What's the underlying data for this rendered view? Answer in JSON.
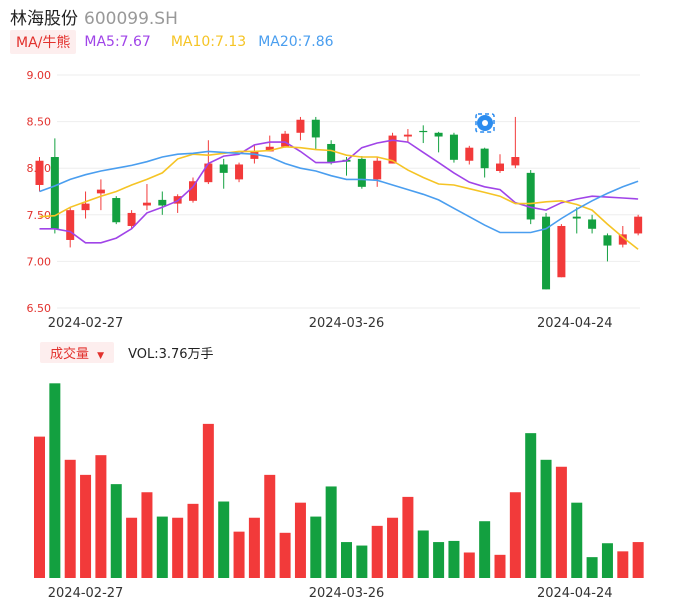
{
  "header": {
    "name": "林海股份",
    "code": "600099.SH"
  },
  "ma_bar": {
    "tag": "MA/牛熊",
    "ma5": "MA5:7.67",
    "ma10": "MA10:7.13",
    "ma20": "MA20:7.86"
  },
  "vol_bar": {
    "tag": "成交量",
    "value": "VOL:3.76万手"
  },
  "colors": {
    "up": "#f23a3a",
    "down": "#13a040",
    "ma5": "#a044e8",
    "ma10": "#f5c425",
    "ma20": "#4a9eef"
  },
  "chart_data": {
    "type": "candlestick",
    "ylim": [
      6.5,
      9.0
    ],
    "yticks": [
      "9.00",
      "8.50",
      "8.00",
      "7.50",
      "7.00",
      "6.50"
    ],
    "xtick_labels": [
      {
        "index": 3,
        "label": "2024-02-27"
      },
      {
        "index": 20,
        "label": "2024-03-26"
      },
      {
        "index": 35,
        "label": "2024-04-24"
      }
    ],
    "candles": [
      {
        "o": 7.82,
        "c": 8.08,
        "h": 8.12,
        "l": 7.75
      },
      {
        "o": 8.12,
        "c": 7.35,
        "h": 8.32,
        "l": 7.3
      },
      {
        "o": 7.23,
        "c": 7.55,
        "h": 7.58,
        "l": 7.15
      },
      {
        "o": 7.55,
        "c": 7.62,
        "h": 7.75,
        "l": 7.46
      },
      {
        "o": 7.73,
        "c": 7.77,
        "h": 7.88,
        "l": 7.55
      },
      {
        "o": 7.68,
        "c": 7.42,
        "h": 7.7,
        "l": 7.4
      },
      {
        "o": 7.38,
        "c": 7.52,
        "h": 7.55,
        "l": 7.35
      },
      {
        "o": 7.6,
        "c": 7.63,
        "h": 7.83,
        "l": 7.55
      },
      {
        "o": 7.66,
        "c": 7.6,
        "h": 7.75,
        "l": 7.5
      },
      {
        "o": 7.62,
        "c": 7.7,
        "h": 7.72,
        "l": 7.52
      },
      {
        "o": 7.65,
        "c": 7.86,
        "h": 7.9,
        "l": 7.63
      },
      {
        "o": 7.85,
        "c": 8.05,
        "h": 8.3,
        "l": 7.83
      },
      {
        "o": 8.04,
        "c": 7.95,
        "h": 8.1,
        "l": 7.78
      },
      {
        "o": 7.88,
        "c": 8.04,
        "h": 8.06,
        "l": 7.85
      },
      {
        "o": 8.1,
        "c": 8.18,
        "h": 8.25,
        "l": 8.05
      },
      {
        "o": 8.18,
        "c": 8.23,
        "h": 8.35,
        "l": 8.18
      },
      {
        "o": 8.23,
        "c": 8.37,
        "h": 8.4,
        "l": 8.22
      },
      {
        "o": 8.38,
        "c": 8.52,
        "h": 8.55,
        "l": 8.3
      },
      {
        "o": 8.52,
        "c": 8.33,
        "h": 8.55,
        "l": 8.2
      },
      {
        "o": 8.26,
        "c": 8.06,
        "h": 8.3,
        "l": 8.04
      },
      {
        "o": 8.09,
        "c": 8.07,
        "h": 8.12,
        "l": 7.92
      },
      {
        "o": 8.1,
        "c": 7.8,
        "h": 8.13,
        "l": 7.78
      },
      {
        "o": 7.88,
        "c": 8.08,
        "h": 8.12,
        "l": 7.8
      },
      {
        "o": 8.05,
        "c": 8.35,
        "h": 8.38,
        "l": 8.05
      },
      {
        "o": 8.34,
        "c": 8.36,
        "h": 8.42,
        "l": 8.28
      },
      {
        "o": 8.4,
        "c": 8.39,
        "h": 8.46,
        "l": 8.27
      },
      {
        "o": 8.38,
        "c": 8.34,
        "h": 8.39,
        "l": 8.17
      },
      {
        "o": 8.36,
        "c": 8.09,
        "h": 8.38,
        "l": 8.06
      },
      {
        "o": 8.08,
        "c": 8.22,
        "h": 8.24,
        "l": 8.04
      },
      {
        "o": 8.21,
        "c": 8.0,
        "h": 8.22,
        "l": 7.9
      },
      {
        "o": 7.97,
        "c": 8.05,
        "h": 8.15,
        "l": 7.95
      },
      {
        "o": 8.03,
        "c": 8.12,
        "h": 8.55,
        "l": 8.0
      },
      {
        "o": 7.95,
        "c": 7.45,
        "h": 7.98,
        "l": 7.4
      },
      {
        "o": 7.48,
        "c": 6.7,
        "h": 7.52,
        "l": 6.7
      },
      {
        "o": 6.83,
        "c": 7.38,
        "h": 7.4,
        "l": 6.83
      },
      {
        "o": 7.48,
        "c": 7.46,
        "h": 7.58,
        "l": 7.3
      },
      {
        "o": 7.45,
        "c": 7.35,
        "h": 7.5,
        "l": 7.3
      },
      {
        "o": 7.28,
        "c": 7.17,
        "h": 7.3,
        "l": 7.0
      },
      {
        "o": 7.18,
        "c": 7.29,
        "h": 7.38,
        "l": 7.15
      },
      {
        "o": 7.3,
        "c": 7.48,
        "h": 7.5,
        "l": 7.28
      }
    ],
    "volume": [
      122,
      168,
      102,
      89,
      106,
      81,
      52,
      74,
      53,
      52,
      64,
      133,
      66,
      40,
      52,
      89,
      39,
      65,
      53,
      79,
      31,
      28,
      45,
      52,
      70,
      41,
      31,
      32,
      22,
      49,
      20,
      74,
      125,
      102,
      96,
      65,
      18,
      30,
      23,
      31
    ],
    "series": [
      {
        "name": "MA5",
        "values": [
          7.35,
          7.35,
          7.32,
          7.2,
          7.2,
          7.25,
          7.35,
          7.52,
          7.58,
          7.65,
          7.8,
          8.05,
          8.13,
          8.15,
          8.25,
          8.28,
          8.28,
          8.18,
          8.06,
          8.06,
          8.08,
          8.22,
          8.27,
          8.3,
          8.28,
          8.17,
          8.06,
          7.95,
          7.85,
          7.8,
          7.77,
          7.63,
          7.58,
          7.55,
          7.63,
          7.67,
          7.7,
          7.69,
          7.68,
          7.67
        ]
      },
      {
        "name": "MA10",
        "values": [
          7.48,
          7.49,
          7.58,
          7.64,
          7.7,
          7.75,
          7.82,
          7.88,
          7.95,
          8.1,
          8.15,
          8.14,
          8.16,
          8.18,
          8.18,
          8.19,
          8.23,
          8.22,
          8.2,
          8.19,
          8.14,
          8.12,
          8.12,
          8.08,
          7.98,
          7.9,
          7.83,
          7.82,
          7.78,
          7.74,
          7.7,
          7.62,
          7.62,
          7.64,
          7.65,
          7.61,
          7.55,
          7.4,
          7.26,
          7.13
        ]
      },
      {
        "name": "MA20",
        "values": [
          7.75,
          7.81,
          7.88,
          7.93,
          7.97,
          8.0,
          8.03,
          8.07,
          8.12,
          8.15,
          8.16,
          8.18,
          8.17,
          8.16,
          8.15,
          8.12,
          8.05,
          8.0,
          7.97,
          7.92,
          7.88,
          7.88,
          7.87,
          7.82,
          7.77,
          7.72,
          7.66,
          7.57,
          7.48,
          7.39,
          7.31,
          7.31,
          7.31,
          7.35,
          7.46,
          7.56,
          7.65,
          7.73,
          7.8,
          7.86
        ]
      }
    ]
  }
}
